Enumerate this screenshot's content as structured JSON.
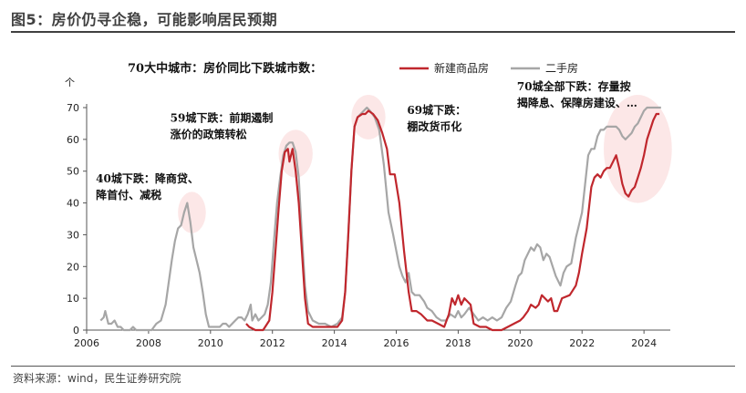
{
  "figure": {
    "title": "图5：房价仍寻企稳，可能影响居民预期",
    "source": "资料来源：wind，民生证券研究院"
  },
  "chart_data": {
    "type": "line",
    "title": "70大中城市：房价同比下跌城市数：",
    "ylabel": "个",
    "xlabel": "",
    "ylim": [
      0,
      70
    ],
    "xlim": [
      2006,
      2024.85
    ],
    "y_ticks": [
      0,
      10,
      20,
      30,
      40,
      50,
      60,
      70
    ],
    "x_ticks": [
      2006,
      2008,
      2010,
      2012,
      2014,
      2016,
      2018,
      2020,
      2022,
      2024
    ],
    "grid": false,
    "legend_position": "top-right",
    "series": [
      {
        "name": "新建商品房",
        "color": "#c0272d",
        "points": [
          [
            2011.15,
            2
          ],
          [
            2011.25,
            1
          ],
          [
            2011.45,
            0
          ],
          [
            2011.7,
            0
          ],
          [
            2011.9,
            3
          ],
          [
            2012.0,
            12
          ],
          [
            2012.1,
            25
          ],
          [
            2012.2,
            38
          ],
          [
            2012.3,
            50
          ],
          [
            2012.4,
            56
          ],
          [
            2012.5,
            57
          ],
          [
            2012.55,
            53
          ],
          [
            2012.65,
            57
          ],
          [
            2012.75,
            50
          ],
          [
            2012.85,
            40
          ],
          [
            2012.95,
            25
          ],
          [
            2013.05,
            10
          ],
          [
            2013.15,
            2
          ],
          [
            2013.3,
            1
          ],
          [
            2013.6,
            1
          ],
          [
            2013.9,
            1
          ],
          [
            2014.1,
            1
          ],
          [
            2014.25,
            3
          ],
          [
            2014.35,
            12
          ],
          [
            2014.45,
            30
          ],
          [
            2014.55,
            50
          ],
          [
            2014.65,
            64
          ],
          [
            2014.75,
            67
          ],
          [
            2014.9,
            68
          ],
          [
            2015.0,
            68
          ],
          [
            2015.1,
            69
          ],
          [
            2015.25,
            68
          ],
          [
            2015.4,
            66
          ],
          [
            2015.55,
            62
          ],
          [
            2015.7,
            57
          ],
          [
            2015.8,
            49
          ],
          [
            2015.95,
            49
          ],
          [
            2016.1,
            40
          ],
          [
            2016.25,
            25
          ],
          [
            2016.4,
            12
          ],
          [
            2016.5,
            6
          ],
          [
            2016.65,
            6
          ],
          [
            2016.8,
            5
          ],
          [
            2017.0,
            3
          ],
          [
            2017.15,
            3
          ],
          [
            2017.35,
            2
          ],
          [
            2017.55,
            1
          ],
          [
            2017.7,
            5
          ],
          [
            2017.8,
            10
          ],
          [
            2017.9,
            8
          ],
          [
            2018.0,
            11
          ],
          [
            2018.1,
            8
          ],
          [
            2018.2,
            10
          ],
          [
            2018.3,
            9
          ],
          [
            2018.4,
            8
          ],
          [
            2018.5,
            2
          ],
          [
            2018.7,
            1
          ],
          [
            2018.9,
            1
          ],
          [
            2019.1,
            0
          ],
          [
            2019.4,
            0
          ],
          [
            2019.6,
            1
          ],
          [
            2019.8,
            2
          ],
          [
            2020.0,
            3
          ],
          [
            2020.1,
            4
          ],
          [
            2020.25,
            6
          ],
          [
            2020.35,
            8
          ],
          [
            2020.5,
            7
          ],
          [
            2020.6,
            8
          ],
          [
            2020.7,
            11
          ],
          [
            2020.8,
            10
          ],
          [
            2020.9,
            9
          ],
          [
            2021.0,
            10
          ],
          [
            2021.1,
            6
          ],
          [
            2021.2,
            6
          ],
          [
            2021.35,
            10
          ],
          [
            2021.6,
            11
          ],
          [
            2021.8,
            14
          ],
          [
            2021.9,
            18
          ],
          [
            2022.0,
            24
          ],
          [
            2022.15,
            32
          ],
          [
            2022.3,
            45
          ],
          [
            2022.4,
            48
          ],
          [
            2022.5,
            49
          ],
          [
            2022.6,
            48
          ],
          [
            2022.7,
            50
          ],
          [
            2022.8,
            51
          ],
          [
            2022.9,
            51
          ],
          [
            2023.0,
            53
          ],
          [
            2023.1,
            55
          ],
          [
            2023.2,
            51
          ],
          [
            2023.3,
            46
          ],
          [
            2023.4,
            43
          ],
          [
            2023.5,
            42
          ],
          [
            2023.6,
            44
          ],
          [
            2023.7,
            45
          ],
          [
            2023.8,
            48
          ],
          [
            2023.9,
            51
          ],
          [
            2024.0,
            55
          ],
          [
            2024.1,
            60
          ],
          [
            2024.2,
            63
          ],
          [
            2024.3,
            66
          ],
          [
            2024.4,
            68
          ],
          [
            2024.5,
            68
          ]
        ]
      },
      {
        "name": "二手房",
        "color": "#a6a6a6",
        "points": [
          [
            2006.45,
            3
          ],
          [
            2006.55,
            4
          ],
          [
            2006.6,
            6
          ],
          [
            2006.7,
            2
          ],
          [
            2006.8,
            2
          ],
          [
            2006.9,
            3
          ],
          [
            2007.0,
            1
          ],
          [
            2007.1,
            1
          ],
          [
            2007.2,
            0
          ],
          [
            2007.4,
            0
          ],
          [
            2007.5,
            1
          ],
          [
            2007.6,
            0
          ],
          [
            2007.8,
            0
          ],
          [
            2008.0,
            0
          ],
          [
            2008.1,
            0
          ],
          [
            2008.25,
            2
          ],
          [
            2008.4,
            3
          ],
          [
            2008.55,
            8
          ],
          [
            2008.65,
            15
          ],
          [
            2008.75,
            22
          ],
          [
            2008.85,
            28
          ],
          [
            2008.95,
            32
          ],
          [
            2009.05,
            33
          ],
          [
            2009.15,
            37
          ],
          [
            2009.25,
            40
          ],
          [
            2009.35,
            34
          ],
          [
            2009.45,
            26
          ],
          [
            2009.55,
            22
          ],
          [
            2009.65,
            18
          ],
          [
            2009.75,
            12
          ],
          [
            2009.85,
            5
          ],
          [
            2009.95,
            1
          ],
          [
            2010.1,
            1
          ],
          [
            2010.2,
            1
          ],
          [
            2010.3,
            1
          ],
          [
            2010.4,
            2
          ],
          [
            2010.5,
            2
          ],
          [
            2010.6,
            1
          ],
          [
            2010.7,
            2
          ],
          [
            2010.8,
            3
          ],
          [
            2010.9,
            4
          ],
          [
            2011.0,
            4
          ],
          [
            2011.1,
            3
          ],
          [
            2011.2,
            5
          ],
          [
            2011.3,
            8
          ],
          [
            2011.35,
            3
          ],
          [
            2011.45,
            5
          ],
          [
            2011.55,
            3
          ],
          [
            2011.65,
            4
          ],
          [
            2011.75,
            5
          ],
          [
            2011.85,
            8
          ],
          [
            2011.95,
            15
          ],
          [
            2012.05,
            28
          ],
          [
            2012.15,
            40
          ],
          [
            2012.25,
            48
          ],
          [
            2012.35,
            55
          ],
          [
            2012.45,
            58
          ],
          [
            2012.55,
            59
          ],
          [
            2012.65,
            59
          ],
          [
            2012.75,
            56
          ],
          [
            2012.85,
            48
          ],
          [
            2012.95,
            30
          ],
          [
            2013.05,
            14
          ],
          [
            2013.15,
            6
          ],
          [
            2013.3,
            3
          ],
          [
            2013.5,
            2
          ],
          [
            2013.7,
            2
          ],
          [
            2013.9,
            1
          ],
          [
            2014.1,
            2
          ],
          [
            2014.25,
            4
          ],
          [
            2014.35,
            12
          ],
          [
            2014.45,
            30
          ],
          [
            2014.55,
            50
          ],
          [
            2014.65,
            64
          ],
          [
            2014.75,
            67
          ],
          [
            2014.85,
            68
          ],
          [
            2014.95,
            69
          ],
          [
            2015.05,
            70
          ],
          [
            2015.15,
            69
          ],
          [
            2015.3,
            67
          ],
          [
            2015.45,
            63
          ],
          [
            2015.6,
            52
          ],
          [
            2015.75,
            37
          ],
          [
            2015.9,
            30
          ],
          [
            2016.0,
            25
          ],
          [
            2016.1,
            20
          ],
          [
            2016.2,
            17
          ],
          [
            2016.3,
            15
          ],
          [
            2016.4,
            18
          ],
          [
            2016.5,
            12
          ],
          [
            2016.6,
            11
          ],
          [
            2016.75,
            11
          ],
          [
            2016.9,
            9
          ],
          [
            2017.0,
            7
          ],
          [
            2017.15,
            6
          ],
          [
            2017.3,
            4
          ],
          [
            2017.45,
            3
          ],
          [
            2017.6,
            3
          ],
          [
            2017.75,
            5
          ],
          [
            2017.9,
            4
          ],
          [
            2018.0,
            6
          ],
          [
            2018.1,
            4
          ],
          [
            2018.2,
            5
          ],
          [
            2018.35,
            7
          ],
          [
            2018.5,
            5
          ],
          [
            2018.65,
            3
          ],
          [
            2018.8,
            4
          ],
          [
            2018.95,
            3
          ],
          [
            2019.1,
            4
          ],
          [
            2019.25,
            3
          ],
          [
            2019.4,
            4
          ],
          [
            2019.55,
            7
          ],
          [
            2019.7,
            9
          ],
          [
            2019.85,
            14
          ],
          [
            2019.95,
            17
          ],
          [
            2020.05,
            18
          ],
          [
            2020.15,
            22
          ],
          [
            2020.25,
            24
          ],
          [
            2020.35,
            26
          ],
          [
            2020.45,
            25
          ],
          [
            2020.55,
            27
          ],
          [
            2020.65,
            26
          ],
          [
            2020.75,
            22
          ],
          [
            2020.85,
            24
          ],
          [
            2020.95,
            23
          ],
          [
            2021.05,
            20
          ],
          [
            2021.15,
            17
          ],
          [
            2021.3,
            14
          ],
          [
            2021.4,
            18
          ],
          [
            2021.5,
            20
          ],
          [
            2021.65,
            21
          ],
          [
            2021.8,
            29
          ],
          [
            2021.9,
            33
          ],
          [
            2022.0,
            37
          ],
          [
            2022.1,
            46
          ],
          [
            2022.2,
            55
          ],
          [
            2022.3,
            57
          ],
          [
            2022.4,
            57
          ],
          [
            2022.5,
            61
          ],
          [
            2022.6,
            63
          ],
          [
            2022.7,
            63
          ],
          [
            2022.8,
            64
          ],
          [
            2022.9,
            64
          ],
          [
            2023.0,
            64
          ],
          [
            2023.1,
            64
          ],
          [
            2023.2,
            63
          ],
          [
            2023.3,
            61
          ],
          [
            2023.4,
            60
          ],
          [
            2023.5,
            61
          ],
          [
            2023.6,
            62
          ],
          [
            2023.7,
            64
          ],
          [
            2023.8,
            65
          ],
          [
            2023.9,
            67
          ],
          [
            2024.0,
            69
          ],
          [
            2024.1,
            70
          ],
          [
            2024.2,
            70
          ],
          [
            2024.4,
            70
          ],
          [
            2024.55,
            70
          ]
        ]
      }
    ],
    "highlights": [
      {
        "name": "highlight-2009",
        "cx": 2009.4,
        "cy": 37,
        "rx": 0.45,
        "ry": 6.5
      },
      {
        "name": "highlight-2012",
        "cx": 2012.75,
        "cy": 55.5,
        "rx": 0.55,
        "ry": 7.5
      },
      {
        "name": "highlight-2015",
        "cx": 2015.1,
        "cy": 67,
        "rx": 0.55,
        "ry": 7
      },
      {
        "name": "highlight-2023",
        "cx": 2023.8,
        "cy": 57,
        "rx": 1.1,
        "ry": 17
      }
    ],
    "annotations": [
      {
        "name": "annotation-40",
        "lines": [
          "40城下跌：降商贷、",
          "降首付、减税"
        ],
        "x": 2006.3,
        "y": 46.5
      },
      {
        "name": "annotation-59",
        "lines": [
          "59城下跌：前期遏制",
          "涨价的政策转松"
        ],
        "x": 2008.7,
        "y": 65.5
      },
      {
        "name": "annotation-69",
        "lines": [
          "69城下跌：",
          "棚改货币化"
        ],
        "x": 2016.35,
        "y": 68
      },
      {
        "name": "annotation-70",
        "lines": [
          "70城全部下跌：存量按",
          "揭降息、保障房建设、…"
        ],
        "x": 2019.9,
        "y": 75.5
      }
    ]
  }
}
